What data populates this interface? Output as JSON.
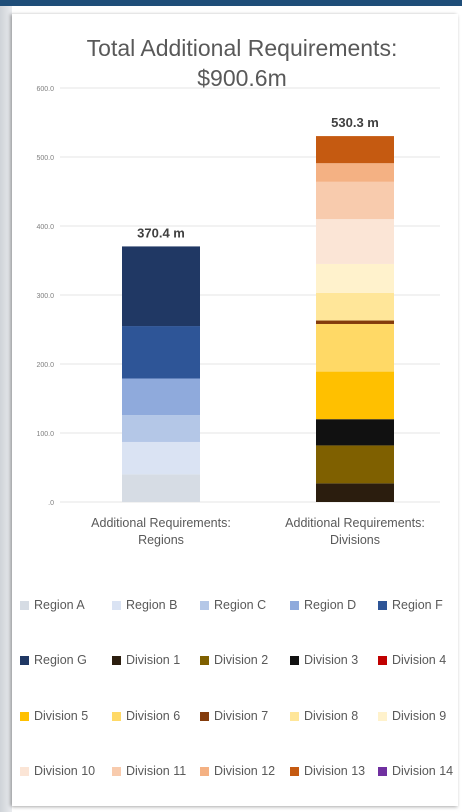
{
  "chart_data": {
    "type": "bar",
    "stacked": true,
    "title_line1": "Total Additional Requirements:",
    "title_line2": "$900.6m",
    "categories": [
      "Additional Requirements: Regions",
      "Additional Requirements: Divisions"
    ],
    "category_label_lines": [
      [
        "Additional Requirements:",
        "Regions"
      ],
      [
        "Additional Requirements:",
        "Divisions"
      ]
    ],
    "totals": [
      "370.4 m",
      "530.3 m"
    ],
    "ylim": [
      0,
      600
    ],
    "yticks": [
      0,
      100,
      200,
      300,
      400,
      500,
      600
    ],
    "ytick_labels": [
      ".0",
      "100.0",
      "200.0",
      "300.0",
      "400.0",
      "500.0",
      "600.0"
    ],
    "grid": true,
    "legend_position": "bottom",
    "series": [
      {
        "name": "Region A",
        "color": "#d6dce4",
        "values": [
          40,
          0
        ]
      },
      {
        "name": "Region B",
        "color": "#dae3f3",
        "values": [
          47,
          0
        ]
      },
      {
        "name": "Region C",
        "color": "#b4c7e7",
        "values": [
          39,
          0
        ]
      },
      {
        "name": "Region D",
        "color": "#8faadc",
        "values": [
          53,
          0
        ]
      },
      {
        "name": "Region F",
        "color": "#2e5597",
        "values": [
          76,
          0
        ]
      },
      {
        "name": "Region G",
        "color": "#203864",
        "values": [
          115.4,
          0
        ]
      },
      {
        "name": "Division 1",
        "color": "#2b1d0e",
        "values": [
          0,
          27
        ]
      },
      {
        "name": "Division 2",
        "color": "#7f6000",
        "values": [
          0,
          55
        ]
      },
      {
        "name": "Division 3",
        "color": "#111111",
        "values": [
          0,
          38
        ]
      },
      {
        "name": "Division 4",
        "color": "#c00000",
        "values": [
          0,
          0
        ]
      },
      {
        "name": "Division 5",
        "color": "#ffc000",
        "values": [
          0,
          69
        ]
      },
      {
        "name": "Division 6",
        "color": "#ffd966",
        "values": [
          0,
          69
        ]
      },
      {
        "name": "Division 7",
        "color": "#843c0c",
        "values": [
          0,
          5
        ]
      },
      {
        "name": "Division 8",
        "color": "#ffe699",
        "values": [
          0,
          40
        ]
      },
      {
        "name": "Division 9",
        "color": "#fff2cc",
        "values": [
          0,
          42
        ]
      },
      {
        "name": "Division 10",
        "color": "#fbe5d6",
        "values": [
          0,
          65
        ]
      },
      {
        "name": "Division 11",
        "color": "#f8cbad",
        "values": [
          0,
          54
        ]
      },
      {
        "name": "Division 12",
        "color": "#f4b183",
        "values": [
          0,
          27
        ]
      },
      {
        "name": "Division 13",
        "color": "#c55a11",
        "values": [
          0,
          39.3
        ]
      },
      {
        "name": "Division 14",
        "color": "#7030a0",
        "values": [
          0,
          0
        ]
      }
    ]
  }
}
